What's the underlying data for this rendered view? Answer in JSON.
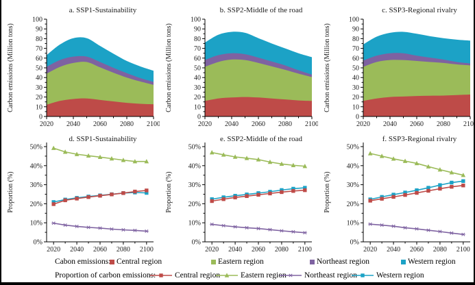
{
  "figure": {
    "background": "#ffffff",
    "border_color": "#000000"
  },
  "legend": {
    "carbon_label": "Cabon emissions:",
    "proportion_label": "Proportion of carbon emissions:",
    "regions": [
      {
        "name": "Central region",
        "color": "#BE4B48",
        "marker": "square"
      },
      {
        "name": "Eastern region",
        "color": "#9BBB59",
        "marker": "triangle"
      },
      {
        "name": "Northeast region",
        "color": "#7E62A1",
        "marker": "asterisk"
      },
      {
        "name": "Western region",
        "color": "#1CA2C6",
        "marker": "square"
      }
    ]
  },
  "chart_data": [
    {
      "id": "a",
      "type": "area",
      "title": "a. SSP1-Sustainability",
      "ylabel": "Carbon emissions (Million tons)",
      "ylim": [
        0,
        100
      ],
      "ymajor": 10,
      "yminor": 5,
      "ysuffix": "",
      "x": [
        2020,
        2030,
        2040,
        2050,
        2060,
        2070,
        2080,
        2090,
        2100
      ],
      "xticks": [
        2020,
        2040,
        2060,
        2080,
        2100
      ],
      "series": [
        {
          "name": "Central region",
          "values": [
            12,
            16,
            18,
            18.5,
            17,
            15.5,
            14,
            13,
            12.5
          ]
        },
        {
          "name": "Eastern region",
          "values": [
            32,
            35,
            37,
            37.5,
            33.5,
            29.5,
            26,
            23,
            20
          ]
        },
        {
          "name": "Northeast region",
          "values": [
            7,
            7,
            6.5,
            5.5,
            5.5,
            5,
            4.5,
            3.5,
            3
          ]
        },
        {
          "name": "Western region",
          "values": [
            12,
            16,
            19,
            19,
            16.5,
            14.5,
            12.5,
            12,
            11.5
          ]
        }
      ]
    },
    {
      "id": "b",
      "type": "area",
      "title": "b. SSP2-Middle of the road",
      "ylabel": "Carbon emissions (Million tons)",
      "ylim": [
        0,
        100
      ],
      "ymajor": 10,
      "yminor": 5,
      "ysuffix": "",
      "x": [
        2020,
        2030,
        2040,
        2050,
        2060,
        2070,
        2080,
        2090,
        2100
      ],
      "xticks": [
        2020,
        2040,
        2060,
        2080,
        2100
      ],
      "series": [
        {
          "name": "Central region",
          "values": [
            16,
            18.5,
            19.5,
            20,
            19.5,
            18.5,
            17.5,
            16.5,
            16
          ]
        },
        {
          "name": "Eastern region",
          "values": [
            35,
            37.5,
            39,
            38,
            35.5,
            33,
            30.5,
            27.5,
            24.5
          ]
        },
        {
          "name": "Northeast region",
          "values": [
            7,
            7,
            6.5,
            6,
            5.5,
            5,
            4.5,
            3.5,
            2.5
          ]
        },
        {
          "name": "Western region",
          "values": [
            18,
            21,
            22,
            22,
            20,
            18.5,
            17.5,
            17.5,
            18
          ]
        }
      ]
    },
    {
      "id": "c",
      "type": "area",
      "title": "c. SSP3-Regional rivalry",
      "ylabel": "Carbon emissions (Million tons)",
      "ylim": [
        0,
        100
      ],
      "ymajor": 10,
      "yminor": 5,
      "ysuffix": "",
      "x": [
        2020,
        2030,
        2040,
        2050,
        2060,
        2070,
        2080,
        2090,
        2100
      ],
      "xticks": [
        2020,
        2040,
        2060,
        2080,
        2100
      ],
      "series": [
        {
          "name": "Central region",
          "values": [
            16,
            18.5,
            20,
            20.5,
            21,
            21.3,
            21.5,
            22,
            22.5
          ]
        },
        {
          "name": "Eastern region",
          "values": [
            35,
            37.5,
            38,
            37.5,
            36,
            34.7,
            33.5,
            31.5,
            30
          ]
        },
        {
          "name": "Northeast region",
          "values": [
            6.5,
            6.5,
            7,
            7,
            5.5,
            4.5,
            3.5,
            2.5,
            2
          ]
        },
        {
          "name": "Western region",
          "values": [
            16.5,
            19.5,
            21,
            22,
            22.5,
            22,
            22,
            23,
            23.5
          ]
        }
      ]
    },
    {
      "id": "d",
      "type": "line",
      "title": "d. SSP1-Sustainability",
      "ylabel": "Proportion (%)",
      "ylim": [
        0,
        50
      ],
      "ymajor": 10,
      "yminor": 5,
      "ysuffix": "%",
      "x": [
        2020,
        2030,
        2040,
        2050,
        2060,
        2070,
        2080,
        2090,
        2100
      ],
      "xticks": [
        2020,
        2040,
        2060,
        2080,
        2100
      ],
      "series": [
        {
          "name": "Central region",
          "values": [
            19.8,
            21.8,
            22.7,
            23.5,
            24.2,
            24.9,
            25.6,
            26.4,
            27.0
          ]
        },
        {
          "name": "Eastern region",
          "values": [
            49.2,
            47.2,
            46.0,
            45.2,
            44.5,
            43.7,
            42.9,
            42.2,
            42.2
          ]
        },
        {
          "name": "Northeast region",
          "values": [
            9.8,
            8.8,
            8.1,
            7.6,
            7.2,
            6.7,
            6.3,
            6.0,
            5.6
          ]
        },
        {
          "name": "Western region",
          "values": [
            20.9,
            22.2,
            23.1,
            23.8,
            24.4,
            25.0,
            25.6,
            25.9,
            25.7
          ]
        }
      ]
    },
    {
      "id": "e",
      "type": "line",
      "title": "e. SSP2-Middle of the road",
      "ylabel": "Proportion (%)",
      "ylim": [
        0,
        50
      ],
      "ymajor": 10,
      "yminor": 5,
      "ysuffix": "%",
      "x": [
        2020,
        2030,
        2040,
        2050,
        2060,
        2070,
        2080,
        2090,
        2100
      ],
      "xticks": [
        2020,
        2040,
        2060,
        2080,
        2100
      ],
      "series": [
        {
          "name": "Central region",
          "values": [
            21.4,
            22.4,
            23.3,
            24.0,
            24.7,
            25.4,
            26.1,
            26.7,
            27.1
          ]
        },
        {
          "name": "Eastern region",
          "values": [
            46.9,
            45.7,
            44.6,
            43.9,
            43.2,
            41.9,
            40.9,
            40.2,
            39.7
          ]
        },
        {
          "name": "Northeast region",
          "values": [
            9.2,
            8.5,
            7.9,
            7.4,
            7.0,
            6.4,
            5.8,
            5.3,
            4.8
          ]
        },
        {
          "name": "Western region",
          "values": [
            22.4,
            23.4,
            24.2,
            24.9,
            25.6,
            26.3,
            27.2,
            27.9,
            28.4
          ]
        }
      ]
    },
    {
      "id": "f",
      "type": "line",
      "title": "f. SSP3-Regional rivalry",
      "ylabel": "Proportion (%)",
      "ylim": [
        0,
        50
      ],
      "ymajor": 10,
      "yminor": 5,
      "ysuffix": "%",
      "x": [
        2020,
        2030,
        2040,
        2050,
        2060,
        2070,
        2080,
        2090,
        2100
      ],
      "xticks": [
        2020,
        2040,
        2060,
        2080,
        2100
      ],
      "series": [
        {
          "name": "Central region",
          "values": [
            21.6,
            22.6,
            23.6,
            24.6,
            25.7,
            26.8,
            27.9,
            28.9,
            29.6
          ]
        },
        {
          "name": "Eastern region",
          "values": [
            46.4,
            45.0,
            43.6,
            42.4,
            41.2,
            39.5,
            37.9,
            36.4,
            35.0
          ]
        },
        {
          "name": "Northeast region",
          "values": [
            9.3,
            8.8,
            8.2,
            7.4,
            6.8,
            6.1,
            5.4,
            4.6,
            3.9
          ]
        },
        {
          "name": "Western region",
          "values": [
            22.3,
            23.6,
            24.8,
            25.9,
            27.1,
            28.4,
            29.8,
            31.1,
            31.9
          ]
        }
      ]
    }
  ]
}
